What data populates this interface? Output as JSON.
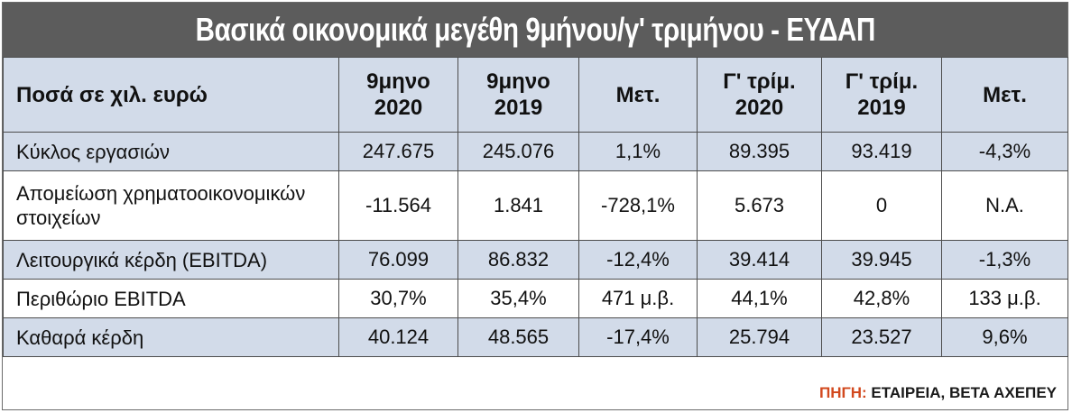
{
  "title": "Βασικά οικονομικά μεγέθη 9μήνου/γ' τριμήνου - ΕΥΔΑΠ",
  "chart_data": {
    "type": "table",
    "columns": [
      {
        "line1": "Ποσά σε χιλ. ευρώ",
        "line2": ""
      },
      {
        "line1": "9μηνο",
        "line2": "2020"
      },
      {
        "line1": "9μηνο",
        "line2": "2019"
      },
      {
        "line1": "Μετ.",
        "line2": ""
      },
      {
        "line1": "Γ' τρίμ.",
        "line2": "2020"
      },
      {
        "line1": "Γ' τρίμ.",
        "line2": "2019"
      },
      {
        "line1": "Μετ.",
        "line2": ""
      }
    ],
    "rows": [
      {
        "label_line1": "Κύκλος εργασιών",
        "label_line2": "",
        "cells": [
          "247.675",
          "245.076",
          "1,1%",
          "89.395",
          "93.419",
          "-4,3%"
        ]
      },
      {
        "label_line1": "Απομείωση χρηματοοικονομικών",
        "label_line2": "στοιχείων",
        "cells": [
          "-11.564",
          "1.841",
          "-728,1%",
          "5.673",
          "0",
          "N.A."
        ]
      },
      {
        "label_line1": "Λειτουργικά κέρδη (EBITDA)",
        "label_line2": "",
        "cells": [
          "76.099",
          "86.832",
          "-12,4%",
          "39.414",
          "39.945",
          "-1,3%"
        ]
      },
      {
        "label_line1": "Περιθώριο EBITDA",
        "label_line2": "",
        "cells": [
          "30,7%",
          "35,4%",
          "471 μ.β.",
          "44,1%",
          "42,8%",
          "133 μ.β."
        ]
      },
      {
        "label_line1": "Καθαρά κέρδη",
        "label_line2": "",
        "cells": [
          "40.124",
          "48.565",
          "-17,4%",
          "25.794",
          "23.527",
          "9,6%"
        ]
      }
    ]
  },
  "source": {
    "label": "ΠΗΓΗ:",
    "text": "ΕΤΑΙΡΕΙΑ, ΒΕΤΑ ΑΧΕΠΕΥ"
  },
  "colors": {
    "title_bg": "#5c5c5c",
    "row_shade": "#d2dbe9",
    "source_label": "#d2491e"
  }
}
